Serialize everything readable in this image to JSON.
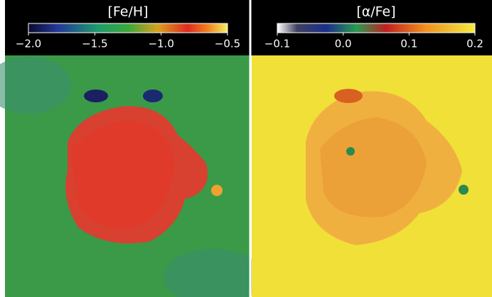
{
  "panels": [
    {
      "title": "[Fe/H]",
      "colorbar": {
        "lim": [
          -2.0,
          -0.5
        ],
        "ticks": [
          {
            "value": -2.0,
            "label": "−2.0"
          },
          {
            "value": -1.5,
            "label": "−1.5"
          },
          {
            "value": -1.0,
            "label": "−1.0"
          },
          {
            "value": -0.5,
            "label": "−0.5"
          }
        ]
      }
    },
    {
      "title": "[α/Fe]",
      "colorbar": {
        "lim": [
          -0.1,
          0.2
        ],
        "ticks": [
          {
            "value": -0.1,
            "label": "−0.1"
          },
          {
            "value": 0.0,
            "label": "0.0"
          },
          {
            "value": 0.1,
            "label": "0.1"
          },
          0.2
        ]
      }
    }
  ]
}
